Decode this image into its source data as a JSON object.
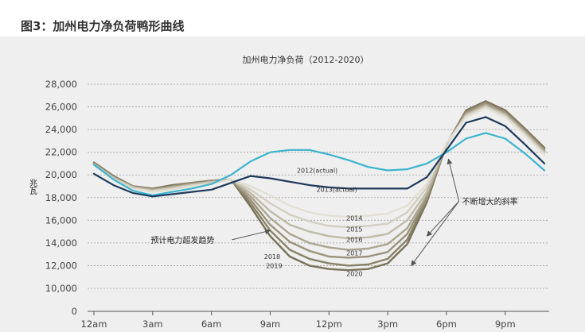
{
  "figure_title": "图3：加州电力净负荷鸭形曲线",
  "chart_data": {
    "type": "line",
    "title": "加州电力净负荷（2012-2020）",
    "ylabel": "兆瓦",
    "xlabel": "",
    "ylim": [
      0,
      28000
    ],
    "y_ticks": [
      0,
      10000,
      12000,
      14000,
      16000,
      18000,
      20000,
      22000,
      24000,
      26000,
      28000
    ],
    "y_tick_labels": [
      "0",
      "10,000",
      "12,000",
      "14,000",
      "16,000",
      "18,000",
      "20,000",
      "22,000",
      "24,000",
      "26,000",
      "28,000"
    ],
    "x_hours": [
      0,
      1,
      2,
      3,
      4,
      5,
      6,
      7,
      8,
      9,
      10,
      11,
      12,
      13,
      14,
      15,
      16,
      17,
      18,
      19,
      20,
      21,
      22,
      23
    ],
    "x_tick_hours": [
      0,
      3,
      6,
      9,
      12,
      15,
      18,
      21
    ],
    "x_tick_labels": [
      "12am",
      "3am",
      "6am",
      "9am",
      "12pm",
      "3pm",
      "6pm",
      "9pm"
    ],
    "series": [
      {
        "name": "2012 (actual)",
        "label": "2012(actual)",
        "label_at": [
          11.4,
          20200
        ],
        "color": "#3cb4cf",
        "values": [
          20900,
          19600,
          18600,
          18200,
          18500,
          18800,
          19200,
          20000,
          21200,
          22000,
          22200,
          22200,
          21800,
          21300,
          20700,
          20400,
          20500,
          21000,
          22000,
          23200,
          23700,
          23200,
          21900,
          20400
        ]
      },
      {
        "name": "2013 (actual)",
        "label": "2013(actual)",
        "label_at": [
          12.4,
          18500
        ],
        "color": "#1d3a5c",
        "values": [
          20100,
          19100,
          18400,
          18100,
          18300,
          18500,
          18700,
          19300,
          19900,
          19700,
          19400,
          19100,
          18900,
          18800,
          18800,
          18800,
          18800,
          19800,
          22200,
          24600,
          25100,
          24300,
          22700,
          21000
        ]
      },
      {
        "name": "2014",
        "label": "2014",
        "label_at": [
          13.3,
          16000
        ],
        "color": "#e2dfd3",
        "values": [
          20900,
          19600,
          18800,
          18500,
          18700,
          19000,
          19200,
          19600,
          19000,
          18200,
          17300,
          16700,
          16400,
          16300,
          16400,
          16600,
          17300,
          19200,
          22800,
          25100,
          25900,
          25100,
          23500,
          21800
        ]
      },
      {
        "name": "2015",
        "label": "2015",
        "label_at": [
          13.3,
          15000
        ],
        "color": "#d3cfc1",
        "values": [
          20900,
          19700,
          18800,
          18600,
          18800,
          19100,
          19300,
          19600,
          18700,
          17500,
          16500,
          15900,
          15500,
          15400,
          15500,
          15700,
          16700,
          18900,
          22800,
          25200,
          26000,
          25200,
          23600,
          21900
        ]
      },
      {
        "name": "2016",
        "label": "2016",
        "label_at": [
          13.3,
          14100
        ],
        "color": "#c0baa7",
        "values": [
          20900,
          19700,
          18900,
          18600,
          18900,
          19100,
          19400,
          19600,
          18400,
          16800,
          15600,
          15000,
          14600,
          14400,
          14500,
          14800,
          16000,
          18500,
          22700,
          25300,
          26100,
          25300,
          23700,
          22000
        ]
      },
      {
        "name": "2017",
        "label": "2017",
        "label_at": [
          13.3,
          12900
        ],
        "color": "#aca58f",
        "values": [
          21000,
          19800,
          18900,
          18700,
          18900,
          19200,
          19400,
          19600,
          18100,
          16200,
          14800,
          14000,
          13600,
          13400,
          13500,
          13900,
          15300,
          18200,
          22700,
          25400,
          26200,
          25400,
          23800,
          22100
        ]
      },
      {
        "name": "2018",
        "label": "2018",
        "label_at": [
          9.1,
          12600
        ],
        "color": "#9a927a",
        "values": [
          21000,
          19800,
          19000,
          18700,
          19000,
          19200,
          19400,
          19600,
          17800,
          15600,
          14100,
          13300,
          12800,
          12700,
          12800,
          13200,
          14800,
          18000,
          22700,
          25500,
          26300,
          25500,
          23900,
          22200
        ]
      },
      {
        "name": "2019",
        "label": "2019",
        "label_at": [
          9.2,
          11800
        ],
        "color": "#8a8268",
        "values": [
          21000,
          19800,
          19000,
          18800,
          19000,
          19300,
          19500,
          19600,
          17500,
          15100,
          13400,
          12600,
          12200,
          12000,
          12100,
          12600,
          14300,
          17800,
          22700,
          25600,
          26400,
          25600,
          24000,
          22300
        ]
      },
      {
        "name": "2020",
        "label": "2020",
        "label_at": [
          13.3,
          11100
        ],
        "color": "#7a7258",
        "values": [
          21100,
          19900,
          19000,
          18800,
          19100,
          19300,
          19500,
          19600,
          17200,
          14600,
          12800,
          12000,
          11700,
          11600,
          11700,
          12200,
          13900,
          17600,
          22700,
          25700,
          26500,
          25700,
          24100,
          22400
        ]
      }
    ],
    "annotations": [
      {
        "text": "预计电力超发趋势",
        "at": [
          2.9,
          14000
        ],
        "arrow_to": [
          9.0,
          15100
        ]
      },
      {
        "text": "不断增大的斜率",
        "at": [
          18.8,
          17400
        ],
        "arrows_to": [
          [
            18.1,
            21400
          ],
          [
            17.0,
            14600
          ],
          [
            16.2,
            12000
          ]
        ]
      }
    ],
    "grid": true,
    "legend": "inline labels"
  }
}
